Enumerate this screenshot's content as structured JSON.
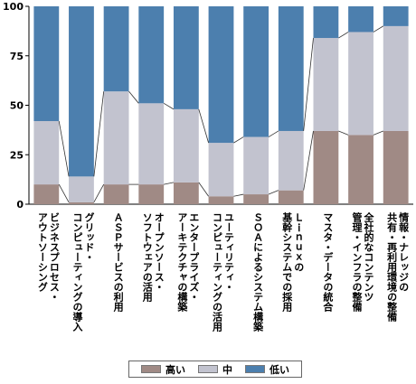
{
  "chart_data": {
    "type": "bar",
    "stacked": true,
    "ylim": [
      0,
      100
    ],
    "yticks": [
      0,
      25,
      50,
      75,
      100
    ],
    "grid": false,
    "legend_position": "bottom",
    "categories": [
      [
        "ビジネスプロセス・",
        "アウトソーシング"
      ],
      [
        "グリッド・",
        "コンピューティングの導入"
      ],
      [
        "ＡＳＰサービスの利用"
      ],
      [
        "オープンソース・",
        "ソフトウェアの活用"
      ],
      [
        "エンタープライズ・",
        "アーキテクチャの構築"
      ],
      [
        "ユーティリティ・",
        "コンピューティングの活用"
      ],
      [
        "ＳＯＡによるシステム構築"
      ],
      [
        "Ｌｉｎｕｘの",
        "基幹システムでの採用"
      ],
      [
        "マスタ・データの統合"
      ],
      [
        "全社的なコンテンツ",
        "管理・インフラの整備"
      ],
      [
        "情報・ナレッジの",
        "共有・再利用環境の整備"
      ]
    ],
    "series": [
      {
        "name": "高い",
        "color": "#a08a85",
        "values": [
          10,
          1,
          10,
          10,
          11,
          4,
          5,
          7,
          37,
          35,
          37
        ]
      },
      {
        "name": "中",
        "color": "#c2c3cf",
        "values": [
          32,
          13,
          47,
          41,
          37,
          27,
          29,
          30,
          47,
          52,
          53
        ]
      },
      {
        "name": "低い",
        "color": "#4c7fae",
        "values": [
          58,
          86,
          43,
          49,
          52,
          69,
          66,
          63,
          16,
          13,
          10
        ]
      }
    ]
  }
}
